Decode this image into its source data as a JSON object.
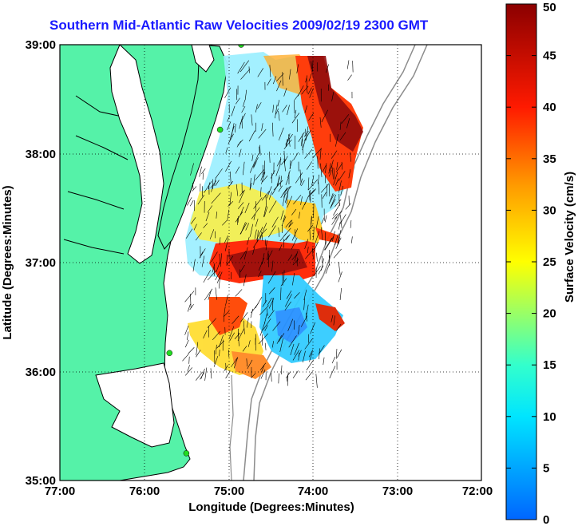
{
  "title": "Southern Mid-Atlantic Raw Velocities 2009/02/19 2300 GMT",
  "xlabel": "Longitude (Degrees:Minutes)",
  "ylabel": "Latitude (Degrees:Minutes)",
  "colorbar_label": "Surface Velocity (cm/s)",
  "x_ticks": [
    "77:00",
    "76:00",
    "75:00",
    "74:00",
    "73:00",
    "72:00"
  ],
  "y_ticks": [
    "39:00",
    "38:00",
    "37:00",
    "36:00",
    "35:00"
  ],
  "colorbar_ticks": [
    "0",
    "5",
    "10",
    "15",
    "20",
    "25",
    "30",
    "35",
    "40",
    "45",
    "50"
  ],
  "colors": {
    "land": "#55f2a8",
    "water": "#ffffff",
    "coastline": "#000000",
    "bathymetry": "#8c8c8c",
    "station": "#22dd22"
  },
  "chart_data": {
    "type": "map",
    "lon_range": [
      -77,
      -72
    ],
    "lat_range": [
      35,
      39
    ],
    "colorbar_range": [
      0,
      50
    ],
    "colorbar_units": "cm/s",
    "grid": true,
    "stations": [
      {
        "lon": -74.85,
        "lat": 39.0
      },
      {
        "lon": -75.1,
        "lat": 38.22
      },
      {
        "lon": -75.7,
        "lat": 36.17
      },
      {
        "lon": -75.5,
        "lat": 35.25
      }
    ]
  }
}
